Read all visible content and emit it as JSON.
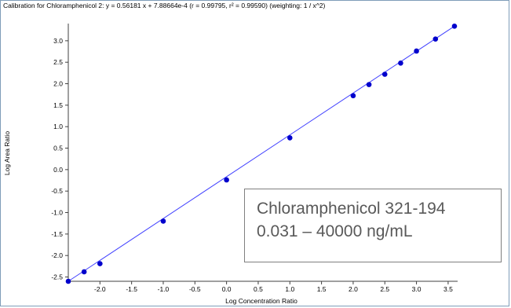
{
  "chart_data": {
    "type": "scatter",
    "title": "Calibration for Chloramphenicol 2: y = 0.56181 x + 7.88664e-4 (r = 0.99795, r² = 0.99590)  (weighting: 1 / x^2)",
    "xlabel": "Log Concentration Ratio",
    "ylabel": "Log Area Ratio",
    "xlim": [
      -2.5,
      3.65
    ],
    "ylim": [
      -2.6,
      3.4
    ],
    "x_ticks": [
      "-2.0",
      "-1.5",
      "-1.0",
      "-0.5",
      "0.0",
      "0.5",
      "1.0",
      "1.5",
      "2.0",
      "2.5",
      "3.0",
      "3.5"
    ],
    "x_tick_values": [
      -2.0,
      -1.5,
      -1.0,
      -0.5,
      0.0,
      0.5,
      1.0,
      1.5,
      2.0,
      2.5,
      3.0,
      3.5
    ],
    "y_ticks": [
      "-2.5",
      "-2.0",
      "-1.5",
      "-1.0",
      "-0.5",
      "0.0",
      "0.5",
      "1.0",
      "1.5",
      "2.0",
      "2.5",
      "3.0"
    ],
    "y_tick_values": [
      -2.5,
      -2.0,
      -1.5,
      -1.0,
      -0.5,
      0.0,
      0.5,
      1.0,
      1.5,
      2.0,
      2.5,
      3.0
    ],
    "grid": false,
    "series": [
      {
        "color": "#0000cc",
        "x": [
          -2.5,
          -2.25,
          -2.0,
          -1.0,
          0.0,
          1.0,
          2.0,
          2.25,
          2.5,
          2.75,
          3.0,
          3.3,
          3.6
        ],
        "y": [
          -2.6,
          -2.38,
          -2.19,
          -1.2,
          -0.24,
          0.74,
          1.72,
          1.98,
          2.22,
          2.48,
          2.76,
          3.04,
          3.34
        ]
      }
    ],
    "fit_line": {
      "color": "#4040ff",
      "x": [
        -2.5,
        3.6
      ],
      "y": [
        -2.6,
        3.34
      ]
    }
  },
  "annotation": {
    "line1": "Chloramphenicol  321-194",
    "line2": "0.031 – 40000 ng/mL"
  }
}
